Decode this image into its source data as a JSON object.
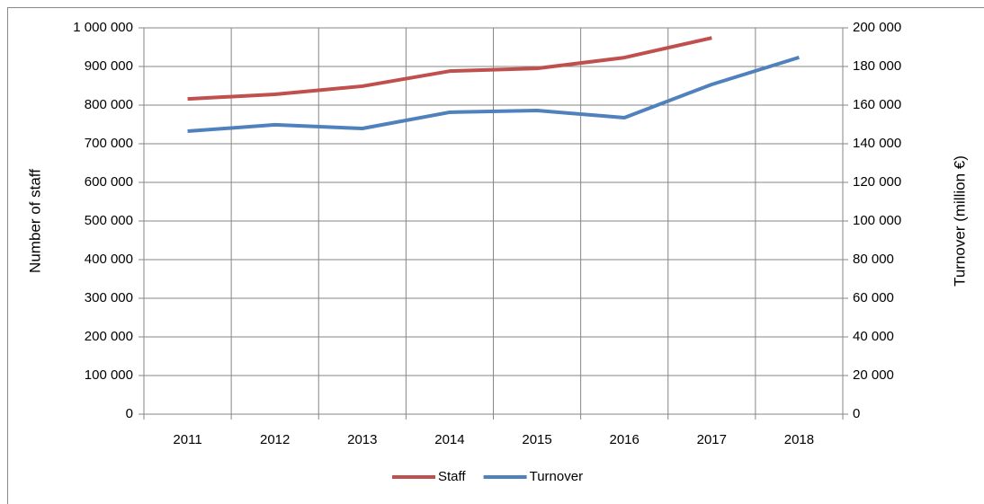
{
  "chart_data": {
    "type": "line",
    "categories": [
      "2011",
      "2012",
      "2013",
      "2014",
      "2015",
      "2016",
      "2017",
      "2018"
    ],
    "series": [
      {
        "name": "Staff",
        "color": "#c0504d",
        "values": [
          816000,
          828000,
          849000,
          888000,
          895000,
          923000,
          974000,
          null
        ]
      },
      {
        "name": "Turnover",
        "color": "#4f81bd",
        "axis": "y2",
        "values": [
          146500,
          149800,
          147900,
          156300,
          157200,
          153500,
          170700,
          184700
        ]
      }
    ],
    "ylabel": "Number of staff",
    "y2label": "Turnover (million €)",
    "ylim": [
      0,
      1000000
    ],
    "yticks": [
      0,
      {
        "value": 100000,
        "label": "100 000"
      },
      {
        "value": 200000,
        "label": "200 000"
      },
      {
        "value": 300000,
        "label": "300 000"
      },
      {
        "value": 400000,
        "label": "400 000"
      },
      {
        "value": 500000,
        "label": "500 000"
      },
      {
        "value": 600000,
        "label": "600 000"
      },
      {
        "value": 700000,
        "label": "700 000"
      },
      {
        "value": 800000,
        "label": "800 000"
      },
      {
        "value": 900000,
        "label": "900 000"
      },
      {
        "value": 1000000,
        "label": "1 000 000"
      }
    ],
    "y2lim": [
      0,
      200000
    ],
    "y2ticks": [
      0,
      {
        "value": 20000,
        "label": "20 000"
      },
      {
        "value": 40000,
        "label": "40 000"
      },
      {
        "value": 60000,
        "label": "60 000"
      },
      {
        "value": 80000,
        "label": "80 000"
      },
      {
        "value": 100000,
        "label": "100 000"
      },
      {
        "value": 120000,
        "label": "120 000"
      },
      {
        "value": 140000,
        "label": "140 000"
      },
      {
        "value": 160000,
        "label": "160 000"
      },
      {
        "value": 180000,
        "label": "180 000"
      },
      {
        "value": 200000,
        "label": "200 000"
      }
    ],
    "grid": true,
    "legend": "bottom"
  }
}
